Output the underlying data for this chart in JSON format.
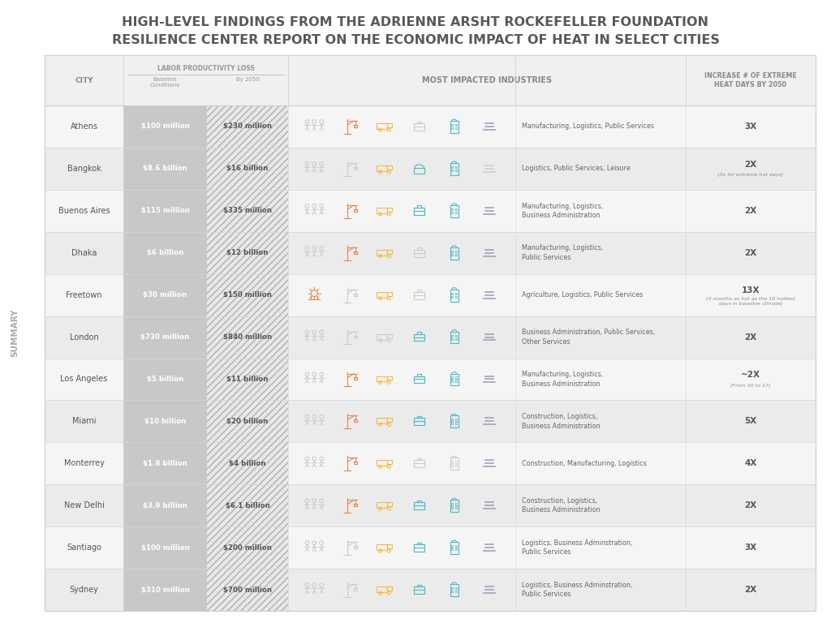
{
  "title_line1": "HIGH-LEVEL FINDINGS FROM THE ADRIENNE ARSHT ROCKEFELLER FOUNDATION",
  "title_line2": "RESILIENCE CENTER REPORT ON THE ECONOMIC IMPACT OF HEAT IN SELECT CITIES",
  "sidebar_label": "SUMMARY",
  "col_header_city": "CITY",
  "col_header_labor": "LABOR PRODUCTIVITY LOSS",
  "col_header_baseline": "Baseline\nConditions",
  "col_header_by2050": "By 2050",
  "col_header_industries": "MOST IMPACTED INDUSTRIES",
  "col_header_heat": "INCREASE # OF EXTREME\nHEAT DAYS BY 2050",
  "bg_color": "#ffffff",
  "title_color": "#595959",
  "header_text_color": "#888888",
  "body_text_color": "#555555",
  "baseline_bg": "#c8c8c8",
  "baseline_text": "#ffffff",
  "hatch_fg": "#b0b0b0",
  "hatch_bg": "#e8e8e8",
  "row_even_color": "#f5f5f5",
  "row_odd_color": "#ebebeb",
  "divider_color": "#d5d5d5",
  "cities": [
    "Athens",
    "Bangkok",
    "Buenos Aires",
    "Dhaka",
    "Freetown",
    "London",
    "Los Angeles",
    "Miami",
    "Monterrey",
    "New Delhi",
    "Santiago",
    "Sydney"
  ],
  "baseline": [
    "$100 million",
    "$8.6 billion",
    "$115 million",
    "$6 billion",
    "$30 million",
    "$730 million",
    "$5 billion",
    "$10 billion",
    "$1.8 billion",
    "$3.9 billion",
    "$100 million",
    "$310 million"
  ],
  "by2050": [
    "$230 million",
    "$16 billion",
    "$335 million",
    "$12 billion",
    "$150 million",
    "$840 million",
    "$11 billion",
    "$20 billion",
    "$4 billion",
    "$6.1 billion",
    "$200 million",
    "$700 million"
  ],
  "industries_text": [
    "Manufacturing, Logistics, Public Services",
    "Logistics, Public Services, Leisure",
    "Manufacturing, Logistics,\nBusiness Administration",
    "Manufacturing, Logistics,\nPublic Services",
    "Agriculture, Logistics, Public Services",
    "Business Administration, Public Services,\nOther Services",
    "Manufacturing, Logistics,\nBusiness Administration",
    "Construction, Logistics,\nBusiness Administration",
    "Construction, Manufacturing, Logistics",
    "Construction, Logistics,\nBusiness Administration",
    "Logistics, Business Adminstration,\nPublic Services",
    "Logistics, Business Adminstration,\nPublic Services"
  ],
  "heat_days_main": [
    "3X",
    "2X",
    "2X",
    "2X",
    "13X",
    "2X",
    "~2X",
    "5X",
    "4X",
    "2X",
    "3X",
    "2X"
  ],
  "heat_days_sub": [
    "",
    "(3x for extreme hot days)",
    "",
    "",
    "(4 months as hot as the 10 hottest\ndays in baseline climate)",
    "",
    "(From 10 to 17)",
    "",
    "",
    "",
    "",
    ""
  ],
  "icon_colors": {
    "agriculture": "#e8874a",
    "construction": "#e8874a",
    "manufacturing": "#e8874a",
    "logistics": "#f5b942",
    "public_services": "#4ab8c4",
    "business_admin": "#4ab8c4",
    "leisure": "#4ab8c4",
    "other_services": "#9999bb",
    "inactive": "#cccccc"
  },
  "icon_sets": [
    {
      "agri": 0,
      "const": 0,
      "manuf": 1,
      "logist": 1,
      "pub_s": 1,
      "biz": 0,
      "leis": 0,
      "other": 0,
      "bldg": 1,
      "lines": 1
    },
    {
      "agri": 0,
      "const": 0,
      "manuf": 0,
      "logist": 1,
      "pub_s": 1,
      "biz": 0,
      "leis": 1,
      "other": 0,
      "bldg": 1,
      "lines": 0
    },
    {
      "agri": 0,
      "const": 0,
      "manuf": 1,
      "logist": 1,
      "pub_s": 0,
      "biz": 1,
      "leis": 0,
      "other": 0,
      "bldg": 1,
      "lines": 1
    },
    {
      "agri": 0,
      "const": 0,
      "manuf": 1,
      "logist": 1,
      "pub_s": 1,
      "biz": 0,
      "leis": 0,
      "other": 0,
      "bldg": 1,
      "lines": 1
    },
    {
      "agri": 1,
      "const": 0,
      "manuf": 0,
      "logist": 1,
      "pub_s": 1,
      "biz": 0,
      "leis": 0,
      "other": 0,
      "bldg": 1,
      "lines": 1
    },
    {
      "agri": 0,
      "const": 0,
      "manuf": 0,
      "logist": 0,
      "pub_s": 1,
      "biz": 1,
      "leis": 0,
      "other": 1,
      "bldg": 1,
      "lines": 1
    },
    {
      "agri": 0,
      "const": 0,
      "manuf": 1,
      "logist": 1,
      "pub_s": 0,
      "biz": 1,
      "leis": 0,
      "other": 0,
      "bldg": 1,
      "lines": 1
    },
    {
      "agri": 0,
      "const": 1,
      "manuf": 0,
      "logist": 1,
      "pub_s": 0,
      "biz": 1,
      "leis": 0,
      "other": 0,
      "bldg": 1,
      "lines": 1
    },
    {
      "agri": 0,
      "const": 1,
      "manuf": 1,
      "logist": 1,
      "pub_s": 0,
      "biz": 0,
      "leis": 0,
      "other": 0,
      "bldg": 0,
      "lines": 1
    },
    {
      "agri": 0,
      "const": 1,
      "manuf": 0,
      "logist": 1,
      "pub_s": 0,
      "biz": 1,
      "leis": 0,
      "other": 0,
      "bldg": 1,
      "lines": 1
    },
    {
      "agri": 0,
      "const": 0,
      "manuf": 0,
      "logist": 1,
      "pub_s": 1,
      "biz": 1,
      "leis": 0,
      "other": 0,
      "bldg": 1,
      "lines": 1
    },
    {
      "agri": 0,
      "const": 0,
      "manuf": 0,
      "logist": 1,
      "pub_s": 1,
      "biz": 1,
      "leis": 0,
      "other": 0,
      "bldg": 1,
      "lines": 1
    }
  ]
}
